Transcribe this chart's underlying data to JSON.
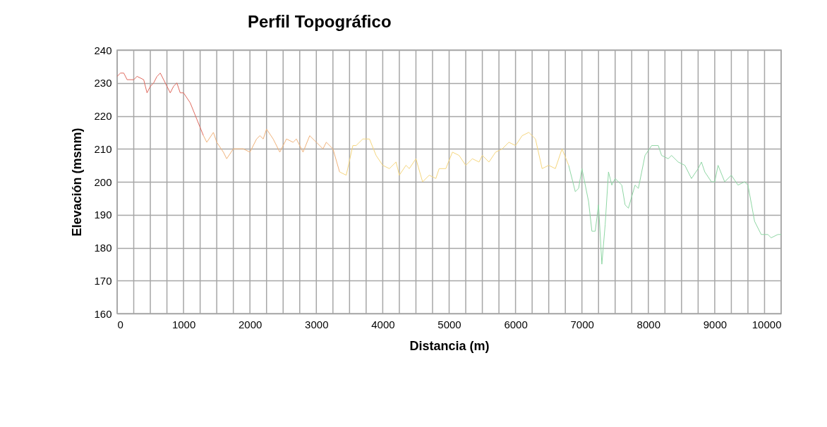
{
  "chart_data": {
    "type": "line",
    "title": "Perfil Topográfico",
    "xlabel": "Distancia (m)",
    "ylabel": "Elevación (msnm)",
    "series": [
      {
        "color": "#e06a5e",
        "x": [
          0,
          50,
          100,
          150,
          250,
          300,
          400,
          450,
          500,
          550,
          600,
          650,
          700,
          800,
          850,
          900,
          950,
          1000,
          1100,
          1200,
          1300
        ],
        "values": [
          232,
          233,
          233,
          231,
          231,
          232,
          231,
          227,
          229,
          230,
          232,
          233,
          231,
          227,
          229,
          230,
          227,
          227,
          224,
          219,
          214
        ]
      },
      {
        "color": "#f0b27a",
        "x": [
          1300,
          1350,
          1450,
          1500,
          1600,
          1650,
          1750,
          1900,
          2000,
          2100,
          2150,
          2200,
          2250,
          2350,
          2450,
          2550,
          2650,
          2700,
          2800,
          2900,
          3000,
          3100,
          3150,
          3250,
          3350
        ],
        "values": [
          214,
          212,
          215,
          212,
          209,
          207,
          210,
          210,
          209,
          213,
          214,
          213,
          216,
          213,
          209,
          213,
          212,
          213,
          209,
          214,
          212,
          210,
          212,
          210,
          203
        ]
      },
      {
        "color": "#f5d67e",
        "x": [
          3350,
          3450,
          3550,
          3600,
          3700,
          3800,
          3900,
          4000,
          4100,
          4200,
          4250,
          4350,
          4400,
          4500,
          4600,
          4700,
          4800,
          4850,
          4950,
          5050,
          5150,
          5250,
          5350,
          5450,
          5500,
          5600,
          5700,
          5800,
          5900,
          6000,
          6100,
          6200,
          6300,
          6400,
          6500,
          6600,
          6700,
          6800
        ],
        "values": [
          203,
          202,
          211,
          211,
          213,
          213,
          208,
          205,
          204,
          206,
          202,
          205,
          204,
          207,
          200,
          202,
          201,
          204,
          204,
          209,
          208,
          205,
          207,
          206,
          208,
          206,
          209,
          210,
          212,
          211,
          214,
          215,
          213,
          204,
          205,
          204,
          210,
          205
        ]
      },
      {
        "color": "#8fd6a4",
        "x": [
          6800,
          6900,
          6950,
          7000,
          7100,
          7150,
          7200,
          7250,
          7300,
          7350,
          7400,
          7450,
          7500,
          7600,
          7650,
          7700,
          7800,
          7850,
          7950,
          8050,
          8150,
          8200,
          8300,
          8350,
          8450,
          8550,
          8650,
          8750,
          8800,
          8850,
          8950,
          9000,
          9050,
          9150,
          9250,
          9350,
          9450,
          9500,
          9600,
          9700,
          9800,
          9850,
          9950,
          10000
        ],
        "values": [
          205,
          197,
          198,
          204,
          194,
          185,
          185,
          193,
          175,
          187,
          203,
          199,
          201,
          199,
          193,
          192,
          199,
          198,
          208,
          211,
          211,
          208,
          207,
          208,
          206,
          205,
          201,
          204,
          206,
          203,
          200,
          200,
          205,
          200,
          202,
          199,
          200,
          199,
          188,
          184,
          184,
          183,
          184,
          184
        ]
      }
    ],
    "xlim": [
      0,
      10000
    ],
    "ylim": [
      160,
      240
    ],
    "xticks": [
      0,
      {
        "value": 250,
        "label": null
      },
      {
        "value": 500,
        "label": null
      },
      {
        "value": 750,
        "label": null
      },
      1000,
      {
        "value": 1250,
        "label": null
      },
      {
        "value": 1500,
        "label": null
      },
      {
        "value": 1750,
        "label": null
      },
      2000,
      {
        "value": 2250,
        "label": null
      },
      {
        "value": 2500,
        "label": null
      },
      {
        "value": 2750,
        "label": null
      },
      3000,
      {
        "value": 3250,
        "label": null
      },
      {
        "value": 3500,
        "label": null
      },
      {
        "value": 3750,
        "label": null
      },
      4000,
      {
        "value": 4250,
        "label": null
      },
      {
        "value": 4500,
        "label": null
      },
      {
        "value": 4750,
        "label": null
      },
      5000,
      {
        "value": 5250,
        "label": null
      },
      {
        "value": 5500,
        "label": null
      },
      {
        "value": 5750,
        "label": null
      },
      6000,
      {
        "value": 6250,
        "label": null
      },
      {
        "value": 6500,
        "label": null
      },
      {
        "value": 6750,
        "label": null
      },
      7000,
      {
        "value": 7250,
        "label": null
      },
      {
        "value": 7500,
        "label": null
      },
      {
        "value": 7750,
        "label": null
      },
      8000,
      {
        "value": 8250,
        "label": null
      },
      {
        "value": 8500,
        "label": null
      },
      {
        "value": 8750,
        "label": null
      },
      9000,
      {
        "value": 9250,
        "label": null
      },
      {
        "value": 9500,
        "label": null
      },
      {
        "value": 9750,
        "label": null
      },
      10000
    ],
    "yticks": [
      160,
      170,
      180,
      190,
      200,
      210,
      220,
      230,
      240
    ],
    "grid": true,
    "marker": "none",
    "line_style": "solid"
  }
}
